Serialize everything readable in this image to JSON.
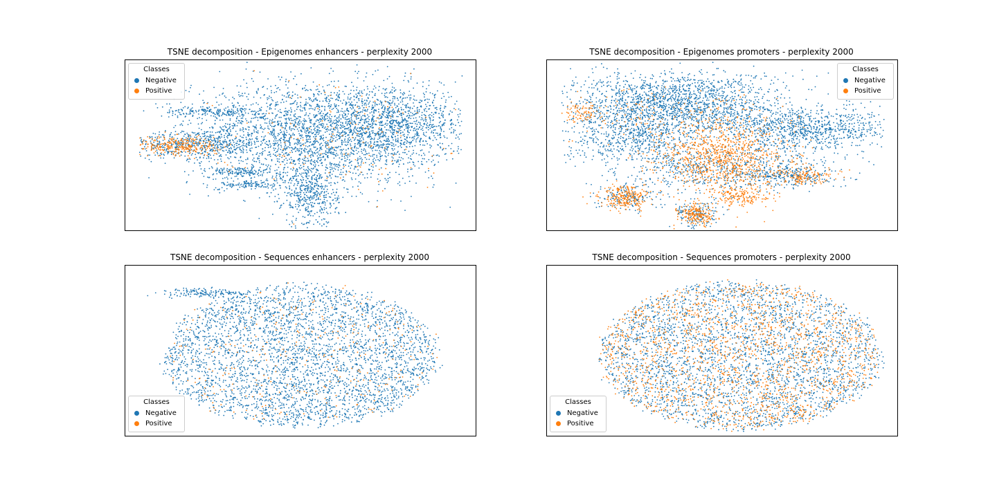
{
  "colors": {
    "negative": "#1f77b4",
    "positive": "#ff7f0e"
  },
  "chart_data": [
    {
      "type": "scatter",
      "title": "TSNE decomposition - Epigenomes enhancers - perplexity 2000",
      "xlabel": "",
      "ylabel": "",
      "xlim": [
        -1.0,
        1.0
      ],
      "ylim": [
        -1.0,
        1.0
      ],
      "grid": false,
      "ticks": "none",
      "legend": {
        "title": "Classes",
        "placement": "top-left",
        "entries": [
          "Negative",
          "Positive"
        ]
      },
      "series": [
        {
          "name": "Negative",
          "color": "#1f77b4",
          "clusters": [
            {
              "cx": 0.1,
              "cy": 0.15,
              "sx": 0.36,
              "sy": 0.3,
              "n": 2600
            },
            {
              "cx": 0.55,
              "cy": 0.25,
              "sx": 0.2,
              "sy": 0.2,
              "n": 800
            },
            {
              "cx": 0.05,
              "cy": -0.55,
              "sx": 0.08,
              "sy": 0.2,
              "n": 500
            },
            {
              "cx": -0.6,
              "cy": 0.02,
              "sx": 0.2,
              "sy": 0.08,
              "n": 500
            },
            {
              "cx": -0.5,
              "cy": 0.4,
              "sx": 0.15,
              "sy": 0.03,
              "n": 200
            },
            {
              "cx": -0.35,
              "cy": -0.3,
              "sx": 0.1,
              "sy": 0.03,
              "n": 150
            },
            {
              "cx": -0.3,
              "cy": -0.45,
              "sx": 0.08,
              "sy": 0.03,
              "n": 120
            }
          ]
        },
        {
          "name": "Positive",
          "color": "#ff7f0e",
          "clusters": [
            {
              "cx": -0.7,
              "cy": 0.0,
              "sx": 0.12,
              "sy": 0.06,
              "n": 300
            },
            {
              "cx": 0.2,
              "cy": 0.15,
              "sx": 0.35,
              "sy": 0.3,
              "n": 140
            }
          ]
        }
      ]
    },
    {
      "type": "scatter",
      "title": "TSNE decomposition - Epigenomes promoters - perplexity 2000",
      "xlabel": "",
      "ylabel": "",
      "xlim": [
        -1.0,
        1.0
      ],
      "ylim": [
        -1.0,
        1.0
      ],
      "grid": false,
      "ticks": "none",
      "legend": {
        "title": "Classes",
        "placement": "top-right",
        "entries": [
          "Negative",
          "Positive"
        ]
      },
      "series": [
        {
          "name": "Negative",
          "color": "#1f77b4",
          "clusters": [
            {
              "cx": -0.25,
              "cy": 0.5,
              "sx": 0.3,
              "sy": 0.18,
              "n": 1800
            },
            {
              "cx": 0.5,
              "cy": 0.2,
              "sx": 0.25,
              "sy": 0.12,
              "n": 900
            },
            {
              "cx": -0.5,
              "cy": 0.1,
              "sx": 0.2,
              "sy": 0.15,
              "n": 600
            },
            {
              "cx": 0.0,
              "cy": -0.25,
              "sx": 0.3,
              "sy": 0.15,
              "n": 700
            },
            {
              "cx": -0.55,
              "cy": -0.6,
              "sx": 0.08,
              "sy": 0.08,
              "n": 150
            },
            {
              "cx": -0.15,
              "cy": -0.8,
              "sx": 0.06,
              "sy": 0.08,
              "n": 150
            },
            {
              "cx": 0.4,
              "cy": -0.35,
              "sx": 0.12,
              "sy": 0.06,
              "n": 200
            }
          ]
        },
        {
          "name": "Positive",
          "color": "#ff7f0e",
          "clusters": [
            {
              "cx": 0.0,
              "cy": -0.15,
              "sx": 0.18,
              "sy": 0.2,
              "n": 900
            },
            {
              "cx": -0.55,
              "cy": -0.6,
              "sx": 0.07,
              "sy": 0.07,
              "n": 250
            },
            {
              "cx": -0.15,
              "cy": -0.8,
              "sx": 0.05,
              "sy": 0.06,
              "n": 200
            },
            {
              "cx": 0.1,
              "cy": -0.6,
              "sx": 0.08,
              "sy": 0.06,
              "n": 150
            },
            {
              "cx": 0.45,
              "cy": -0.35,
              "sx": 0.1,
              "sy": 0.05,
              "n": 150
            },
            {
              "cx": -0.8,
              "cy": 0.4,
              "sx": 0.06,
              "sy": 0.06,
              "n": 80
            },
            {
              "cx": -0.2,
              "cy": 0.3,
              "sx": 0.3,
              "sy": 0.2,
              "n": 200
            }
          ]
        }
      ]
    },
    {
      "type": "scatter",
      "title": "TSNE decomposition - Sequences enhancers - perplexity 2000",
      "xlabel": "",
      "ylabel": "",
      "xlim": [
        -1.0,
        1.0
      ],
      "ylim": [
        -1.0,
        1.0
      ],
      "grid": false,
      "ticks": "none",
      "legend": {
        "title": "Classes",
        "placement": "bottom-left",
        "entries": [
          "Negative",
          "Positive"
        ]
      },
      "series": [
        {
          "name": "Negative",
          "color": "#1f77b4",
          "clusters": [
            {
              "cx": 0.0,
              "cy": -0.05,
              "sx": 0.4,
              "sy": 0.4,
              "n": 3600,
              "ellipse": [
                0.8,
                0.85
              ]
            },
            {
              "cx": -0.55,
              "cy": 0.68,
              "sx": 0.12,
              "sy": 0.03,
              "n": 150
            }
          ]
        },
        {
          "name": "Positive",
          "color": "#ff7f0e",
          "clusters": [
            {
              "cx": 0.0,
              "cy": -0.05,
              "sx": 0.35,
              "sy": 0.35,
              "n": 300,
              "ellipse": [
                0.8,
                0.85
              ]
            }
          ]
        }
      ]
    },
    {
      "type": "scatter",
      "title": "TSNE decomposition - Sequences promoters - perplexity 2000",
      "xlabel": "",
      "ylabel": "",
      "xlim": [
        -1.0,
        1.0
      ],
      "ylim": [
        -1.0,
        1.0
      ],
      "grid": false,
      "ticks": "none",
      "legend": {
        "title": "Classes",
        "placement": "bottom-left",
        "entries": [
          "Negative",
          "Positive"
        ]
      },
      "series": [
        {
          "name": "Negative",
          "color": "#1f77b4",
          "clusters": [
            {
              "cx": 0.1,
              "cy": -0.05,
              "sx": 0.45,
              "sy": 0.45,
              "n": 3200,
              "ellipse": [
                0.82,
                0.88
              ]
            }
          ]
        },
        {
          "name": "Positive",
          "color": "#ff7f0e",
          "clusters": [
            {
              "cx": 0.1,
              "cy": -0.05,
              "sx": 0.45,
              "sy": 0.45,
              "n": 1800,
              "ellipse": [
                0.82,
                0.88
              ]
            }
          ]
        }
      ]
    }
  ]
}
